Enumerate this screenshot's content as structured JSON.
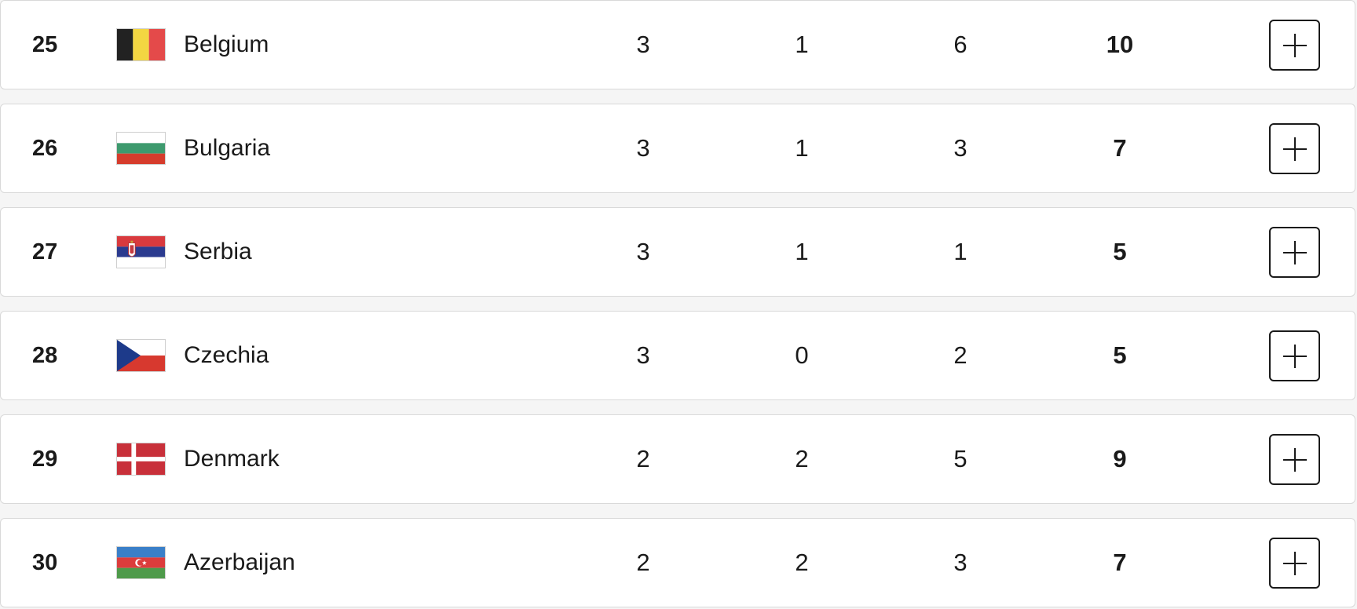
{
  "rows": [
    {
      "rank": "25",
      "country": "Belgium",
      "flag_icon": "flag-belgium-icon",
      "gold": "3",
      "silver": "1",
      "bronze": "6",
      "total": "10"
    },
    {
      "rank": "26",
      "country": "Bulgaria",
      "flag_icon": "flag-bulgaria-icon",
      "gold": "3",
      "silver": "1",
      "bronze": "3",
      "total": "7"
    },
    {
      "rank": "27",
      "country": "Serbia",
      "flag_icon": "flag-serbia-icon",
      "gold": "3",
      "silver": "1",
      "bronze": "1",
      "total": "5"
    },
    {
      "rank": "28",
      "country": "Czechia",
      "flag_icon": "flag-czechia-icon",
      "gold": "3",
      "silver": "0",
      "bronze": "2",
      "total": "5"
    },
    {
      "rank": "29",
      "country": "Denmark",
      "flag_icon": "flag-denmark-icon",
      "gold": "2",
      "silver": "2",
      "bronze": "5",
      "total": "9"
    },
    {
      "rank": "30",
      "country": "Azerbaijan",
      "flag_icon": "flag-azerbaijan-icon",
      "gold": "2",
      "silver": "2",
      "bronze": "3",
      "total": "7"
    }
  ],
  "expand_icon": "plus-icon",
  "colors": {
    "row_background": "#ffffff",
    "page_background": "#f5f5f5",
    "row_border": "#d9d9d9",
    "text": "#1a1a1a"
  }
}
